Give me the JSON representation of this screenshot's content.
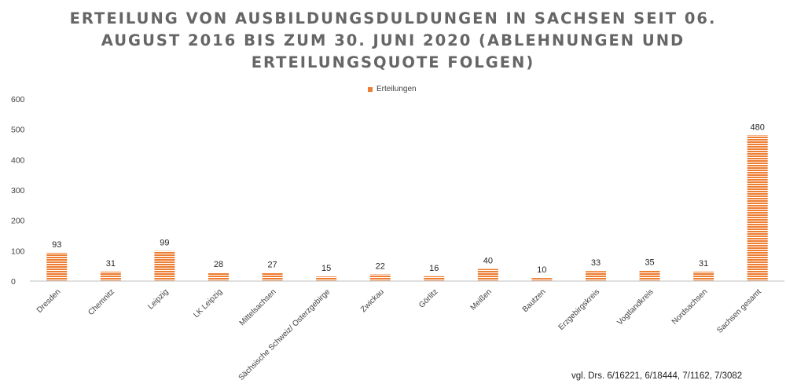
{
  "title_lines": [
    "ERTEILUNG VON AUSBILDUNGSDULDUNGEN IN SACHSEN SEIT 06.",
    "AUGUST 2016 BIS ZUM 30. JUNI 2020 (ABLEHNUNGEN UND",
    "ERTEILUNGSQUOTE FOLGEN)"
  ],
  "footnote": "vgl. Drs. 6/16221, 6/18444, 7/1162, 7/3082",
  "colors": {
    "bar": "#ED7D31",
    "bar_stripe": "#ffffff",
    "axis": "#bfbfbf",
    "text": "#404040"
  },
  "chart_data": {
    "type": "bar",
    "title": "ERTEILUNG VON AUSBILDUNGSDULDUNGEN IN SACHSEN SEIT 06. AUGUST 2016 BIS ZUM 30. JUNI 2020 (ABLEHNUNGEN UND ERTEILUNGSQUOTE FOLGEN)",
    "categories": [
      "Dresden",
      "Chemnitz",
      "Leipzig",
      "LK Leipzig",
      "Mittelsachsen",
      "Sächsische Schweiz/ Osterzgebirge",
      "Zwickau",
      "Görlitz",
      "Meißen",
      "Bautzen",
      "Erzgebirgskreis",
      "Vogtlandkreis",
      "Nordsachsen",
      "Sachsen gesamt"
    ],
    "series": [
      {
        "name": "Erteilungen",
        "values": [
          93,
          31,
          99,
          28,
          27,
          15,
          22,
          16,
          40,
          10,
          33,
          35,
          31,
          480
        ]
      }
    ],
    "yticks": [
      0,
      100,
      200,
      300,
      400,
      500,
      600
    ],
    "ylim": [
      0,
      600
    ],
    "xlabel": "",
    "ylabel": "",
    "grid": false,
    "legend": "top-center",
    "data_labels": true
  }
}
